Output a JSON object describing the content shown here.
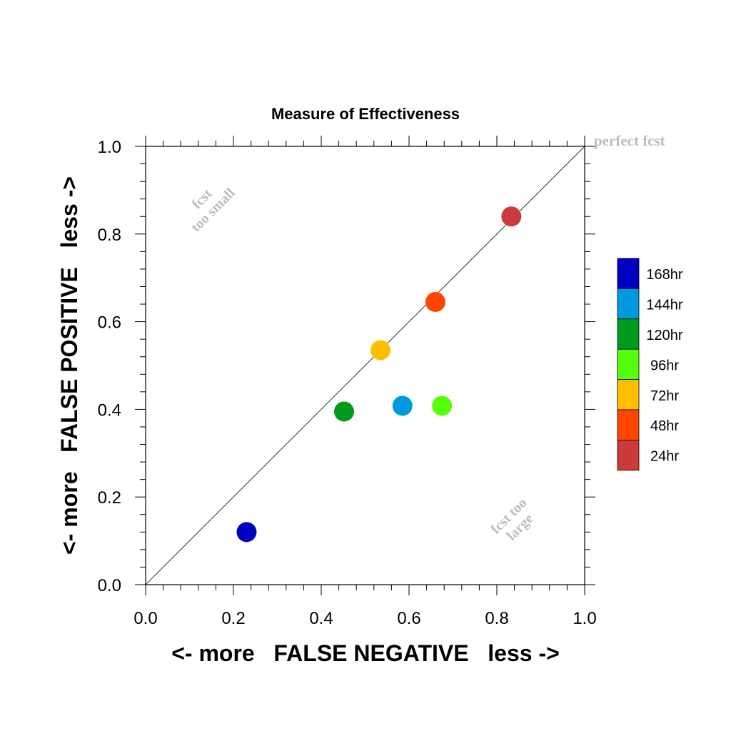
{
  "chart_data": {
    "type": "scatter",
    "title": "Measure of Effectiveness",
    "xlabel": "<- more   FALSE NEGATIVE   less ->",
    "ylabel": "<- more   FALSE POSITIVE   less ->",
    "xlim": [
      0,
      1
    ],
    "ylim": [
      0,
      1
    ],
    "xticks": [
      "0.0",
      "0.2",
      "0.4",
      "0.6",
      "0.8",
      "1.0"
    ],
    "yticks": [
      "0.0",
      "0.2",
      "0.4",
      "0.6",
      "0.8",
      "1.0"
    ],
    "diagonal_label": "perfect fcst",
    "annotations": {
      "upper_left": [
        "fcst",
        "too small"
      ],
      "lower_right": [
        "fcst too",
        "large"
      ]
    },
    "grid": false,
    "legend_position": "right",
    "series": [
      {
        "name": "168hr",
        "color": "#0000c0",
        "x": 0.23,
        "y": 0.12
      },
      {
        "name": "144hr",
        "color": "#0099dd",
        "x": 0.585,
        "y": 0.408
      },
      {
        "name": "120hr",
        "color": "#009a1e",
        "x": 0.452,
        "y": 0.395
      },
      {
        "name": "96hr",
        "color": "#55ff0a",
        "x": 0.675,
        "y": 0.408
      },
      {
        "name": "72hr",
        "color": "#ffbf00",
        "x": 0.535,
        "y": 0.535
      },
      {
        "name": "48hr",
        "color": "#ff4500",
        "x": 0.66,
        "y": 0.645
      },
      {
        "name": "24hr",
        "color": "#cc3a3a",
        "x": 0.833,
        "y": 0.84
      }
    ]
  }
}
